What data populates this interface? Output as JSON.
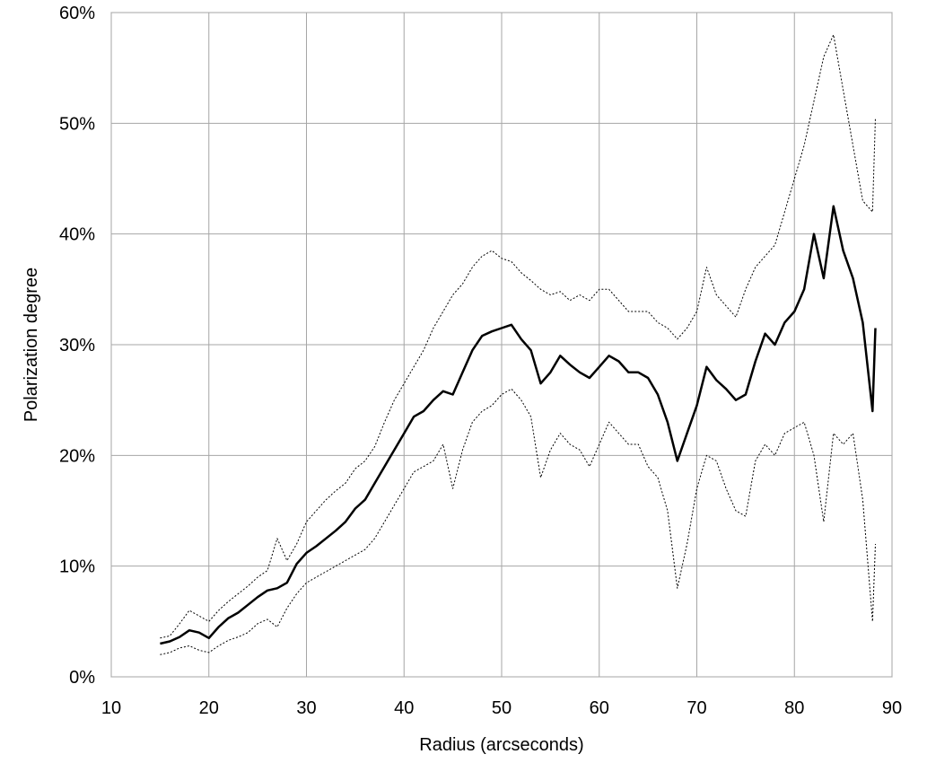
{
  "chart_data": {
    "type": "line",
    "title": "",
    "xlabel": "Radius (arcseconds)",
    "ylabel": "Polarization degree",
    "xlim": [
      10,
      90
    ],
    "ylim": [
      0,
      60
    ],
    "x_ticks": [
      10,
      20,
      30,
      40,
      50,
      60,
      70,
      80,
      90
    ],
    "x_tick_labels": [
      "10",
      "20",
      "30",
      "40",
      "50",
      "60",
      "70",
      "80",
      "90"
    ],
    "y_ticks": [
      0,
      10,
      20,
      30,
      40,
      50,
      60
    ],
    "y_tick_labels": [
      "0%",
      "10%",
      "20%",
      "30%",
      "40%",
      "50%",
      "60%"
    ],
    "grid": true,
    "legend": "none",
    "x": [
      15,
      16,
      17,
      18,
      19,
      20,
      21,
      22,
      23,
      24,
      25,
      26,
      27,
      28,
      29,
      30,
      31,
      32,
      33,
      34,
      35,
      36,
      37,
      38,
      39,
      40,
      41,
      42,
      43,
      44,
      45,
      46,
      47,
      48,
      49,
      50,
      51,
      52,
      53,
      54,
      55,
      56,
      57,
      58,
      59,
      60,
      61,
      62,
      63,
      64,
      65,
      66,
      67,
      68,
      69,
      70,
      71,
      72,
      73,
      74,
      75,
      76,
      77,
      78,
      79,
      80,
      81,
      82,
      83,
      84,
      85,
      86,
      87,
      88,
      88.3
    ],
    "series": [
      {
        "style": "solid",
        "color": "#000000",
        "values": [
          3.0,
          3.2,
          3.6,
          4.2,
          4.0,
          3.5,
          4.5,
          5.3,
          5.8,
          6.5,
          7.2,
          7.8,
          8.0,
          8.5,
          10.2,
          11.2,
          11.8,
          12.5,
          13.2,
          14.0,
          15.2,
          16.0,
          17.5,
          19.0,
          20.5,
          22.0,
          23.5,
          24.0,
          25.0,
          25.8,
          25.5,
          27.5,
          29.5,
          30.8,
          31.2,
          31.5,
          31.8,
          30.5,
          29.5,
          26.5,
          27.5,
          29.0,
          28.2,
          27.5,
          27.0,
          28.0,
          29.0,
          28.5,
          27.5,
          27.5,
          27.0,
          25.5,
          23.0,
          19.5,
          22.0,
          24.5,
          28.0,
          26.8,
          26.0,
          25.0,
          25.5,
          28.5,
          31.0,
          30.0,
          32.0,
          33.0,
          35.0,
          40.0,
          36.0,
          42.5,
          38.5,
          36.0,
          32.0,
          24.0,
          31.5
        ]
      },
      {
        "style": "dotted",
        "color": "#000000",
        "values": [
          3.5,
          3.7,
          4.8,
          6.0,
          5.5,
          5.0,
          6.0,
          6.8,
          7.5,
          8.2,
          9.0,
          9.6,
          12.5,
          10.5,
          12.0,
          14.0,
          15.0,
          16.0,
          16.8,
          17.5,
          18.8,
          19.5,
          20.8,
          23.0,
          25.0,
          26.5,
          28.0,
          29.5,
          31.5,
          33.0,
          34.5,
          35.5,
          37.0,
          38.0,
          38.5,
          37.8,
          37.5,
          36.5,
          35.8,
          35.0,
          34.5,
          34.8,
          34.0,
          34.5,
          34.0,
          35.0,
          35.0,
          34.0,
          33.0,
          33.0,
          33.0,
          32.0,
          31.5,
          30.5,
          31.5,
          33.0,
          37.0,
          34.5,
          33.5,
          32.5,
          35.0,
          37.0,
          38.0,
          39.0,
          42.0,
          45.0,
          48.0,
          52.0,
          56.0,
          58.0,
          53.0,
          48.0,
          43.0,
          42.0,
          50.5
        ]
      },
      {
        "style": "dotted",
        "color": "#000000",
        "values": [
          2.0,
          2.2,
          2.6,
          2.8,
          2.4,
          2.2,
          2.8,
          3.3,
          3.6,
          4.0,
          4.8,
          5.2,
          4.5,
          6.2,
          7.5,
          8.5,
          9.0,
          9.5,
          10.0,
          10.5,
          11.0,
          11.5,
          12.5,
          14.0,
          15.5,
          17.0,
          18.5,
          19.0,
          19.5,
          21.0,
          17.0,
          20.5,
          23.0,
          24.0,
          24.5,
          25.5,
          26.0,
          25.0,
          23.5,
          18.0,
          20.5,
          22.0,
          21.0,
          20.5,
          19.0,
          21.0,
          23.0,
          22.0,
          21.0,
          21.0,
          19.0,
          18.0,
          15.0,
          8.0,
          12.0,
          17.0,
          20.0,
          19.5,
          17.0,
          15.0,
          14.5,
          19.5,
          21.0,
          20.0,
          22.0,
          22.5,
          23.0,
          20.0,
          14.0,
          22.0,
          21.0,
          22.0,
          16.0,
          5.0,
          12.0
        ]
      }
    ]
  }
}
